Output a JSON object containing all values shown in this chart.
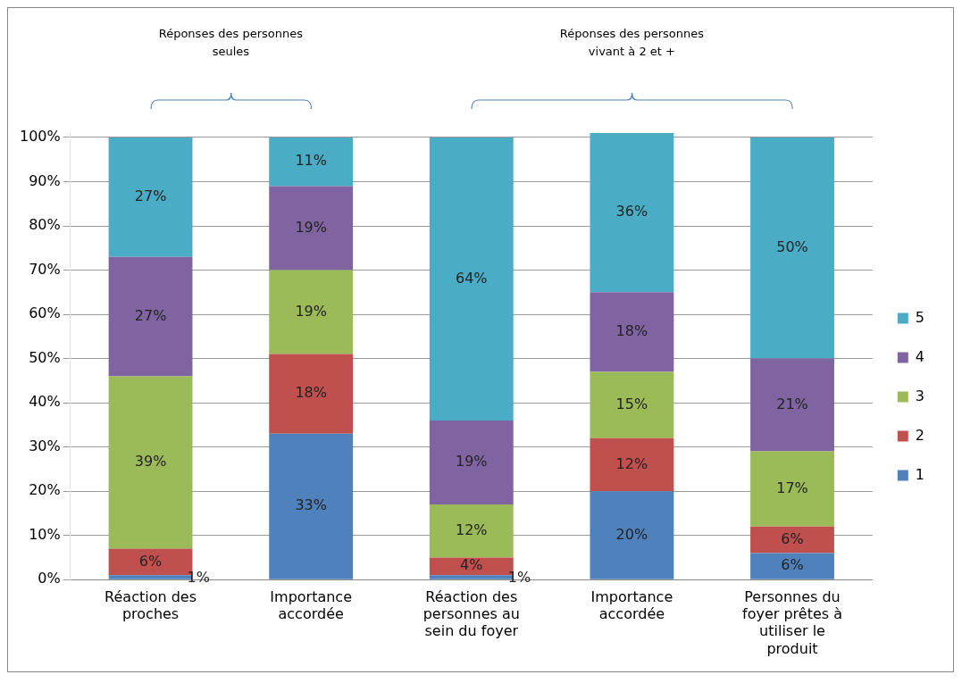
{
  "chart_data": {
    "type": "bar",
    "stacked": true,
    "categories": [
      "Réaction des proches",
      "Importance accordée",
      "Réaction des personnes au sein du foyer",
      "Importance accordée",
      "Personnes du foyer prêtes à utiliser le produit"
    ],
    "series": [
      {
        "name": "1",
        "color": "#4f81bd",
        "values": [
          1,
          33,
          1,
          20,
          6
        ],
        "value_labels": [
          "1%",
          "33%",
          "1%",
          "20%",
          "6%"
        ]
      },
      {
        "name": "2",
        "color": "#c0504d",
        "values": [
          6,
          18,
          4,
          12,
          6
        ],
        "value_labels": [
          "6%",
          "18%",
          "4%",
          "12%",
          "6%"
        ]
      },
      {
        "name": "3",
        "color": "#9bbb59",
        "values": [
          39,
          19,
          12,
          15,
          17
        ],
        "value_labels": [
          "39%",
          "19%",
          "12%",
          "15%",
          "17%"
        ]
      },
      {
        "name": "4",
        "color": "#8064a2",
        "values": [
          27,
          19,
          19,
          18,
          21
        ],
        "value_labels": [
          "27%",
          "19%",
          "19%",
          "18%",
          "21%"
        ]
      },
      {
        "name": "5",
        "color": "#4bacc6",
        "values": [
          27,
          11,
          64,
          36,
          50
        ],
        "value_labels": [
          "27%",
          "11%",
          "64%",
          "36%",
          "50%"
        ]
      }
    ],
    "ylim": [
      0,
      101
    ],
    "yticks": [
      {
        "value": 0,
        "label": "0%"
      },
      {
        "value": 10,
        "label": "10%"
      },
      {
        "value": 20,
        "label": "20%"
      },
      {
        "value": 30,
        "label": "30%"
      },
      {
        "value": 40,
        "label": "40%"
      },
      {
        "value": 50,
        "label": "50%"
      },
      {
        "value": 60,
        "label": "60%"
      },
      {
        "value": 70,
        "label": "70%"
      },
      {
        "value": 80,
        "label": "80%"
      },
      {
        "value": 90,
        "label": "90%"
      },
      {
        "value": 100,
        "label": "100%"
      }
    ],
    "grid": "y",
    "legend": "right",
    "annotations": [
      "Réponses des personnes seules",
      "Réponses des personnes vivant à 2 et +"
    ]
  }
}
